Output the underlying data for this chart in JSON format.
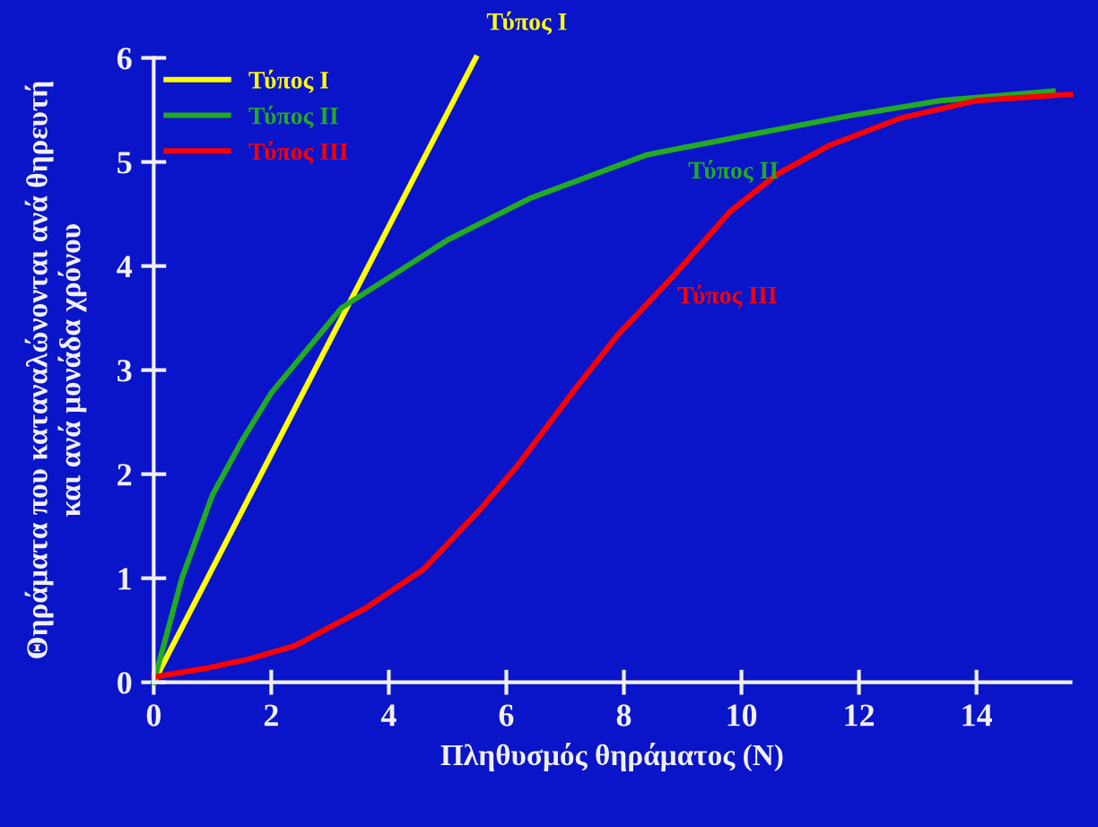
{
  "chart_data": {
    "type": "line",
    "xlabel": "Πληθυσμός θηράματος (Ν)",
    "ylabel": "Θηράματα που καταναλώνονται ανά θηρευτή\nκαι ανά μονάδα χρόνου",
    "xlim": [
      0,
      15.6
    ],
    "ylim": [
      0,
      6
    ],
    "xticks": [
      0,
      2,
      4,
      6,
      8,
      10,
      12,
      14
    ],
    "yticks": [
      0,
      1,
      2,
      3,
      4,
      5,
      6
    ],
    "grid": false,
    "legend": "top left",
    "marker": "none",
    "line_style": "solid",
    "series": [
      {
        "name": "Τύπος I",
        "color": "#ffff00",
        "x": [
          0,
          5.48
        ],
        "values": [
          0,
          6
        ]
      },
      {
        "name": "Τύπος II",
        "color": "#22aa22",
        "x": [
          0,
          0.48,
          1.0,
          1.5,
          2.0,
          3.2,
          4.2,
          5.0,
          6.4,
          8.4,
          10.4,
          11.9,
          13.4,
          15.3
        ],
        "values": [
          0,
          1.0,
          1.8,
          2.32,
          2.78,
          3.6,
          3.96,
          4.25,
          4.65,
          5.07,
          5.29,
          5.45,
          5.59,
          5.68
        ]
      },
      {
        "name": "Τύπος III",
        "color": "#ff0000",
        "x": [
          0,
          0.93,
          1.6,
          2.4,
          3.6,
          4.6,
          5.6,
          6.2,
          7.2,
          7.9,
          8.9,
          9.8,
          10.6,
          11.5,
          12.7,
          14,
          15.6
        ],
        "values": [
          0.05,
          0.14,
          0.22,
          0.35,
          0.71,
          1.09,
          1.69,
          2.09,
          2.84,
          3.34,
          3.94,
          4.52,
          4.88,
          5.16,
          5.42,
          5.59,
          5.65
        ]
      }
    ],
    "annotations": [
      "Τύπος I",
      "Τύπος II",
      "Τύπος III"
    ]
  }
}
